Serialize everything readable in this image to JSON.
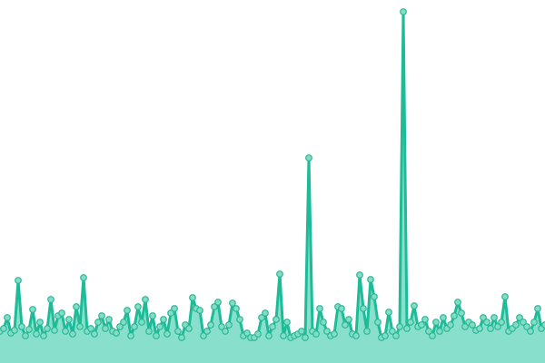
{
  "chart_data": {
    "type": "area",
    "title": "",
    "xlabel": "",
    "ylabel": "",
    "grid": false,
    "axes_visible": false,
    "markers": true,
    "ylim": [
      0,
      400
    ],
    "colors": {
      "line": "#1dbb98",
      "fill": "#88e0cc",
      "marker_fill": "#82dcc6",
      "marker_stroke": "#2ab996"
    },
    "values": [
      35,
      38,
      50,
      33,
      36,
      91,
      40,
      30,
      37,
      59,
      32,
      45,
      30,
      38,
      70,
      36,
      52,
      55,
      35,
      48,
      32,
      62,
      40,
      94,
      35,
      38,
      32,
      45,
      52,
      38,
      48,
      35,
      33,
      40,
      45,
      58,
      30,
      40,
      62,
      45,
      70,
      35,
      52,
      30,
      40,
      48,
      32,
      55,
      60,
      35,
      28,
      42,
      38,
      72,
      60,
      58,
      30,
      35,
      42,
      62,
      67,
      40,
      35,
      42,
      66,
      60,
      48,
      30,
      33,
      28,
      28,
      32,
      50,
      55,
      30,
      40,
      48,
      98,
      30,
      45,
      28,
      30,
      32,
      35,
      28,
      226,
      35,
      32,
      60,
      45,
      35,
      30,
      32,
      62,
      60,
      42,
      48,
      32,
      30,
      97,
      60,
      35,
      92,
      73,
      45,
      28,
      30,
      56,
      35,
      30,
      40,
      387,
      38,
      45,
      63,
      40,
      42,
      48,
      35,
      30,
      45,
      35,
      50,
      38,
      42,
      52,
      67,
      55,
      40,
      45,
      42,
      36,
      38,
      50,
      45,
      38,
      50,
      40,
      45,
      73,
      35,
      38,
      42,
      50,
      45,
      40,
      35,
      45,
      60,
      38,
      42
    ]
  }
}
